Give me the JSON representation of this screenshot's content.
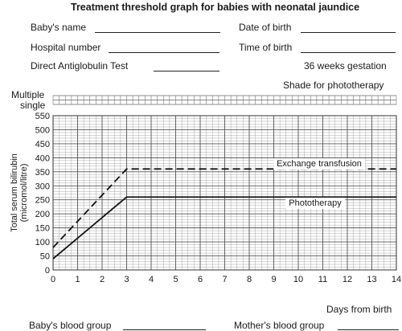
{
  "form": {
    "title": "Treatment threshold graph for babies with neonatal jaundice",
    "babys_name": "Baby's name",
    "date_of_birth": "Date of birth",
    "hospital_number": "Hospital number",
    "time_of_birth": "Time of birth",
    "dat": "Direct Antiglobulin Test",
    "gestation": "36 weeks gestation",
    "shade_note": "Shade for phototherapy",
    "multiple": "Multiple",
    "single": "single",
    "babys_blood_group": "Baby's blood group",
    "mothers_blood_group": "Mother's blood group"
  },
  "chart_data": {
    "type": "line",
    "xlabel": "Days from birth",
    "ylabel": "Total serum bilirubin (micromol/litre)",
    "xlim": [
      0,
      14
    ],
    "ylim": [
      0,
      550
    ],
    "x_ticks": [
      0,
      1,
      2,
      3,
      4,
      5,
      6,
      7,
      8,
      9,
      10,
      11,
      12,
      13,
      14
    ],
    "y_ticks": [
      0,
      50,
      100,
      150,
      200,
      250,
      300,
      350,
      400,
      450,
      500,
      550
    ],
    "grid": true,
    "series": [
      {
        "name": "Exchange transfusion",
        "style": "dashed",
        "x": [
          0,
          3,
          14
        ],
        "y": [
          80,
          360,
          360
        ]
      },
      {
        "name": "Phototherapy",
        "style": "solid",
        "x": [
          0,
          3,
          14
        ],
        "y": [
          40,
          260,
          260
        ]
      }
    ]
  }
}
